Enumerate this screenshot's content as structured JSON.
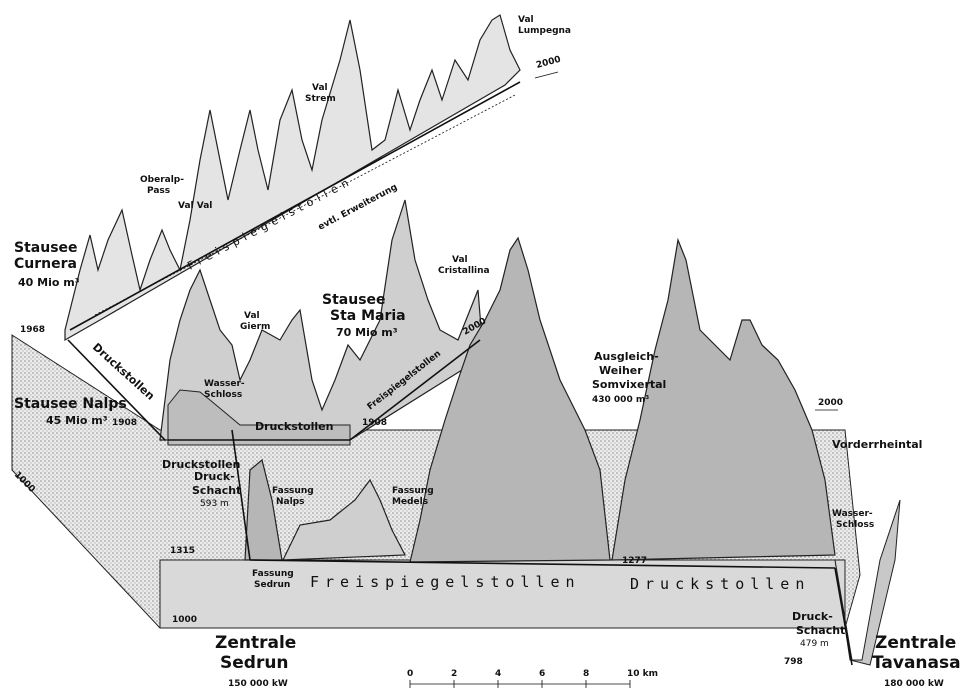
{
  "labels": {
    "val_lumpegna": [
      "Val",
      "Lumpegna"
    ],
    "val_strem": [
      "Val",
      "Strem"
    ],
    "oberalp_pass": [
      "Oberalp-",
      "Pass"
    ],
    "val_val": "Val Val",
    "stausee_curnera": [
      "Stausee",
      "Curnera"
    ],
    "curnera_volume": "40 Mio m³",
    "stausee_nalps": "Stausee Nalps",
    "nalps_volume": "45 Mio m³",
    "val_gierm": [
      "Val",
      "Gierm"
    ],
    "wasserschloss_1": [
      "Wasser-",
      "Schloss"
    ],
    "stausee_santa_maria": [
      "Stausee",
      "Sta Maria"
    ],
    "santa_maria_volume": "70 Mio m³",
    "val_cristallina": [
      "Val",
      "Cristallina"
    ],
    "ausgleich_weiher": [
      "Ausgleich-",
      "Weiher",
      "Somvixertal"
    ],
    "weiher_volume": "430 000 m³",
    "vorderrheintal": "Vorderrheintal",
    "wasserschloss_2": [
      "Wasser-",
      "Schloss"
    ],
    "fassung_nalps": [
      "Fassung",
      "Nalps"
    ],
    "fassung_medels": [
      "Fassung",
      "Medels"
    ],
    "fassung_sedrun": [
      "Fassung",
      "Sedrun"
    ],
    "druckschacht_1": [
      "Druck-",
      "Schacht"
    ],
    "druckschacht_1_len": "593 m",
    "druckschacht_2": [
      "Druck-",
      "Schacht"
    ],
    "druckschacht_2_len": "479 m",
    "zentrale_sedrun": [
      "Zentrale",
      "Sedrun"
    ],
    "sedrun_power": "150 000 kW",
    "zentrale_tavanasa": [
      "Zentrale",
      "Tavanasa"
    ],
    "tavanasa_power": "180 000 kW"
  },
  "tunnels": {
    "freispiegel_upper": "Freispiegelstollen",
    "erweiterung": "evtl. Erweiterung",
    "druckstollen_diag": "Druckstollen",
    "druckstollen_mid": "Druckstollen",
    "freispiegel_mid": "Freispiegelstollen",
    "druckstollen_left": "Druckstollen",
    "freispiegel_bottom": "Freispiegelstollen",
    "druckstollen_bottom": "Druckstollen"
  },
  "elevations": {
    "e1968": "1968",
    "e1908_left": "1908",
    "e1908_right": "1908",
    "e1315": "1315",
    "e1277": "1277",
    "e798": "798",
    "e2000_upper": "2000",
    "e2000_mid": "2000",
    "e2000_right": "2000",
    "e1000_side": "1000",
    "e1000_base": "1000"
  },
  "scale": {
    "ticks": [
      "0",
      "2",
      "4",
      "6",
      "8",
      "10 km"
    ]
  }
}
